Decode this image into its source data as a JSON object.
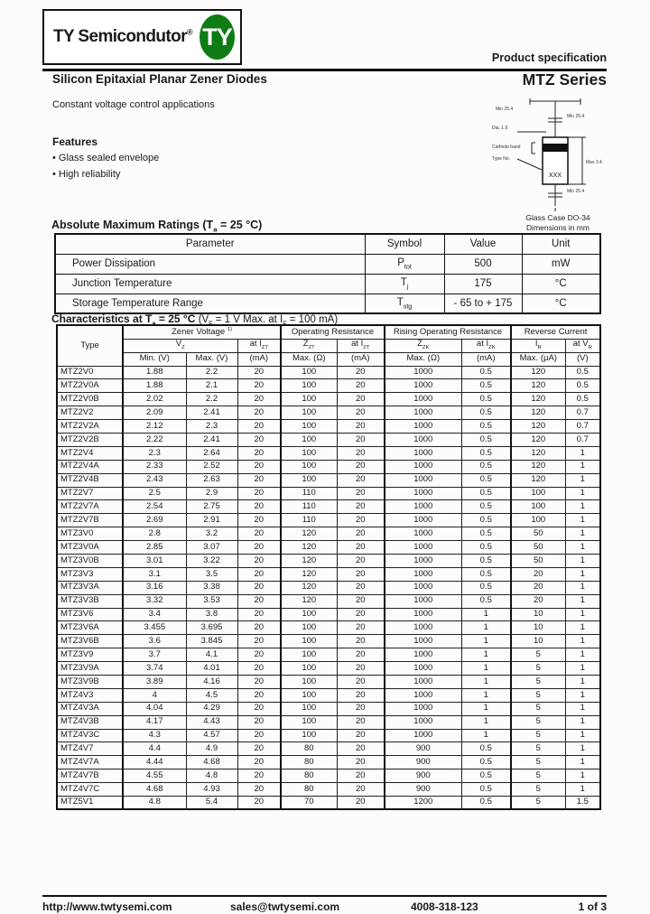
{
  "colors": {
    "brand_green": "#0e7c14",
    "line": "#111111",
    "text": "#1a1a1a"
  },
  "header": {
    "logo_text": "TY Semicondutor",
    "logo_reg": "®",
    "logo_badge": "TY",
    "product_spec": "Product specification",
    "title": "Silicon Epitaxial Planar Zener Diodes",
    "series": "MTZ Series",
    "subtitle": "Constant voltage control applications"
  },
  "features": {
    "heading": "Features",
    "items": [
      "• Glass sealed envelope",
      "• High reliability"
    ]
  },
  "package": {
    "marking": "XXX",
    "dim_lead_top": "Min 25.4",
    "dim_lead_bottom": "Min 25.4",
    "dim_top_line": "Min 25.4",
    "dim_dia": "Dia. 1.9",
    "dim_body": "Max 3.4",
    "label_band": "Cathode band",
    "label_type": "Type No.",
    "caption1": "Glass Case DO-34",
    "caption2": "Dimensions in mm"
  },
  "abs_max": {
    "heading_pre": "Absolute Maximum Ratings (T",
    "heading_sub": "a",
    "heading_post": " = 25 °C)",
    "columns": [
      "Parameter",
      "Symbol",
      "Value",
      "Unit"
    ],
    "rows": [
      {
        "param": "Power Dissipation",
        "sym": "P",
        "sym_sub": "tot",
        "value": "500",
        "unit": "mW"
      },
      {
        "param": "Junction Temperature",
        "sym": "T",
        "sym_sub": "j",
        "value": "175",
        "unit": "°C"
      },
      {
        "param": "Storage Temperature Range",
        "sym": "T",
        "sym_sub": "stg",
        "value": "- 65 to + 175",
        "unit": "°C"
      }
    ]
  },
  "characteristics": {
    "heading_bold_pre": "Characteristics at T",
    "heading_bold_sub": "a",
    "heading_bold_post": " = 25 °C ",
    "heading_n1": "(V",
    "heading_n1s": "F",
    "heading_n2": " = 1 V Max. at I",
    "heading_n2s": "F",
    "heading_n3": " = 100 mA)",
    "grp_type": "Type",
    "grp_zener": "Zener Voltage ",
    "grp_zener_sup": "1)",
    "grp_op": "Operating Resistance",
    "grp_rising": "Rising Operating Resistance",
    "grp_rev": "Reverse Current",
    "sub_vz_b": "V",
    "sub_vz_s": "Z",
    "sub_at_izt_p": "at I",
    "sub_at_izt_s": "ZT",
    "sub_zzt_b": "Z",
    "sub_zzt_s": "ZT",
    "sub_at_izt2_p": "at I",
    "sub_at_izt2_s": "ZT",
    "sub_zzk_b": "Z",
    "sub_zzk_s": "ZK",
    "sub_at_izk_p": "at I",
    "sub_at_izk_s": "ZK",
    "sub_ir_b": "I",
    "sub_ir_s": "R",
    "sub_at_vr_p": "at V",
    "sub_at_vr_s": "R",
    "units": [
      "Min. (V)",
      "Max. (V)",
      "(mA)",
      "Max. (Ω)",
      "(mA)",
      "Max. (Ω)",
      "(mA)",
      "Max. (μA)",
      "(V)"
    ],
    "rows": [
      [
        "MTZ2V0",
        "1.88",
        "2.2",
        "20",
        "100",
        "20",
        "1000",
        "0.5",
        "120",
        "0.5"
      ],
      [
        "MTZ2V0A",
        "1.88",
        "2.1",
        "20",
        "100",
        "20",
        "1000",
        "0.5",
        "120",
        "0.5"
      ],
      [
        "MTZ2V0B",
        "2.02",
        "2.2",
        "20",
        "100",
        "20",
        "1000",
        "0.5",
        "120",
        "0.5"
      ],
      [
        "MTZ2V2",
        "2.09",
        "2.41",
        "20",
        "100",
        "20",
        "1000",
        "0.5",
        "120",
        "0.7"
      ],
      [
        "MTZ2V2A",
        "2.12",
        "2.3",
        "20",
        "100",
        "20",
        "1000",
        "0.5",
        "120",
        "0.7"
      ],
      [
        "MTZ2V2B",
        "2.22",
        "2.41",
        "20",
        "100",
        "20",
        "1000",
        "0.5",
        "120",
        "0.7"
      ],
      [
        "MTZ2V4",
        "2.3",
        "2.64",
        "20",
        "100",
        "20",
        "1000",
        "0.5",
        "120",
        "1"
      ],
      [
        "MTZ2V4A",
        "2.33",
        "2.52",
        "20",
        "100",
        "20",
        "1000",
        "0.5",
        "120",
        "1"
      ],
      [
        "MTZ2V4B",
        "2.43",
        "2.63",
        "20",
        "100",
        "20",
        "1000",
        "0.5",
        "120",
        "1"
      ],
      [
        "MTZ2V7",
        "2.5",
        "2.9",
        "20",
        "110",
        "20",
        "1000",
        "0.5",
        "100",
        "1"
      ],
      [
        "MTZ2V7A",
        "2.54",
        "2.75",
        "20",
        "110",
        "20",
        "1000",
        "0.5",
        "100",
        "1"
      ],
      [
        "MTZ2V7B",
        "2.69",
        "2.91",
        "20",
        "110",
        "20",
        "1000",
        "0.5",
        "100",
        "1"
      ],
      [
        "MTZ3V0",
        "2.8",
        "3.2",
        "20",
        "120",
        "20",
        "1000",
        "0.5",
        "50",
        "1"
      ],
      [
        "MTZ3V0A",
        "2.85",
        "3.07",
        "20",
        "120",
        "20",
        "1000",
        "0.5",
        "50",
        "1"
      ],
      [
        "MTZ3V0B",
        "3.01",
        "3.22",
        "20",
        "120",
        "20",
        "1000",
        "0.5",
        "50",
        "1"
      ],
      [
        "MTZ3V3",
        "3.1",
        "3.5",
        "20",
        "120",
        "20",
        "1000",
        "0.5",
        "20",
        "1"
      ],
      [
        "MTZ3V3A",
        "3.16",
        "3.38",
        "20",
        "120",
        "20",
        "1000",
        "0.5",
        "20",
        "1"
      ],
      [
        "MTZ3V3B",
        "3.32",
        "3.53",
        "20",
        "120",
        "20",
        "1000",
        "0.5",
        "20",
        "1"
      ],
      [
        "MTZ3V6",
        "3.4",
        "3.8",
        "20",
        "100",
        "20",
        "1000",
        "1",
        "10",
        "1"
      ],
      [
        "MTZ3V6A",
        "3.455",
        "3.695",
        "20",
        "100",
        "20",
        "1000",
        "1",
        "10",
        "1"
      ],
      [
        "MTZ3V6B",
        "3.6",
        "3.845",
        "20",
        "100",
        "20",
        "1000",
        "1",
        "10",
        "1"
      ],
      [
        "MTZ3V9",
        "3.7",
        "4.1",
        "20",
        "100",
        "20",
        "1000",
        "1",
        "5",
        "1"
      ],
      [
        "MTZ3V9A",
        "3.74",
        "4.01",
        "20",
        "100",
        "20",
        "1000",
        "1",
        "5",
        "1"
      ],
      [
        "MTZ3V9B",
        "3.89",
        "4.16",
        "20",
        "100",
        "20",
        "1000",
        "1",
        "5",
        "1"
      ],
      [
        "MTZ4V3",
        "4",
        "4.5",
        "20",
        "100",
        "20",
        "1000",
        "1",
        "5",
        "1"
      ],
      [
        "MTZ4V3A",
        "4.04",
        "4.29",
        "20",
        "100",
        "20",
        "1000",
        "1",
        "5",
        "1"
      ],
      [
        "MTZ4V3B",
        "4.17",
        "4.43",
        "20",
        "100",
        "20",
        "1000",
        "1",
        "5",
        "1"
      ],
      [
        "MTZ4V3C",
        "4.3",
        "4.57",
        "20",
        "100",
        "20",
        "1000",
        "1",
        "5",
        "1"
      ],
      [
        "MTZ4V7",
        "4.4",
        "4.9",
        "20",
        "80",
        "20",
        "900",
        "0.5",
        "5",
        "1"
      ],
      [
        "MTZ4V7A",
        "4.44",
        "4.68",
        "20",
        "80",
        "20",
        "900",
        "0.5",
        "5",
        "1"
      ],
      [
        "MTZ4V7B",
        "4.55",
        "4.8",
        "20",
        "80",
        "20",
        "900",
        "0.5",
        "5",
        "1"
      ],
      [
        "MTZ4V7C",
        "4.68",
        "4.93",
        "20",
        "80",
        "20",
        "900",
        "0.5",
        "5",
        "1"
      ],
      [
        "MTZ5V1",
        "4.8",
        "5.4",
        "20",
        "70",
        "20",
        "1200",
        "0.5",
        "5",
        "1.5"
      ]
    ]
  },
  "footer": {
    "url": "http://www.twtysemi.com",
    "email": "sales@twtysemi.com",
    "phone": "4008-318-123",
    "page": "1 of 3"
  }
}
